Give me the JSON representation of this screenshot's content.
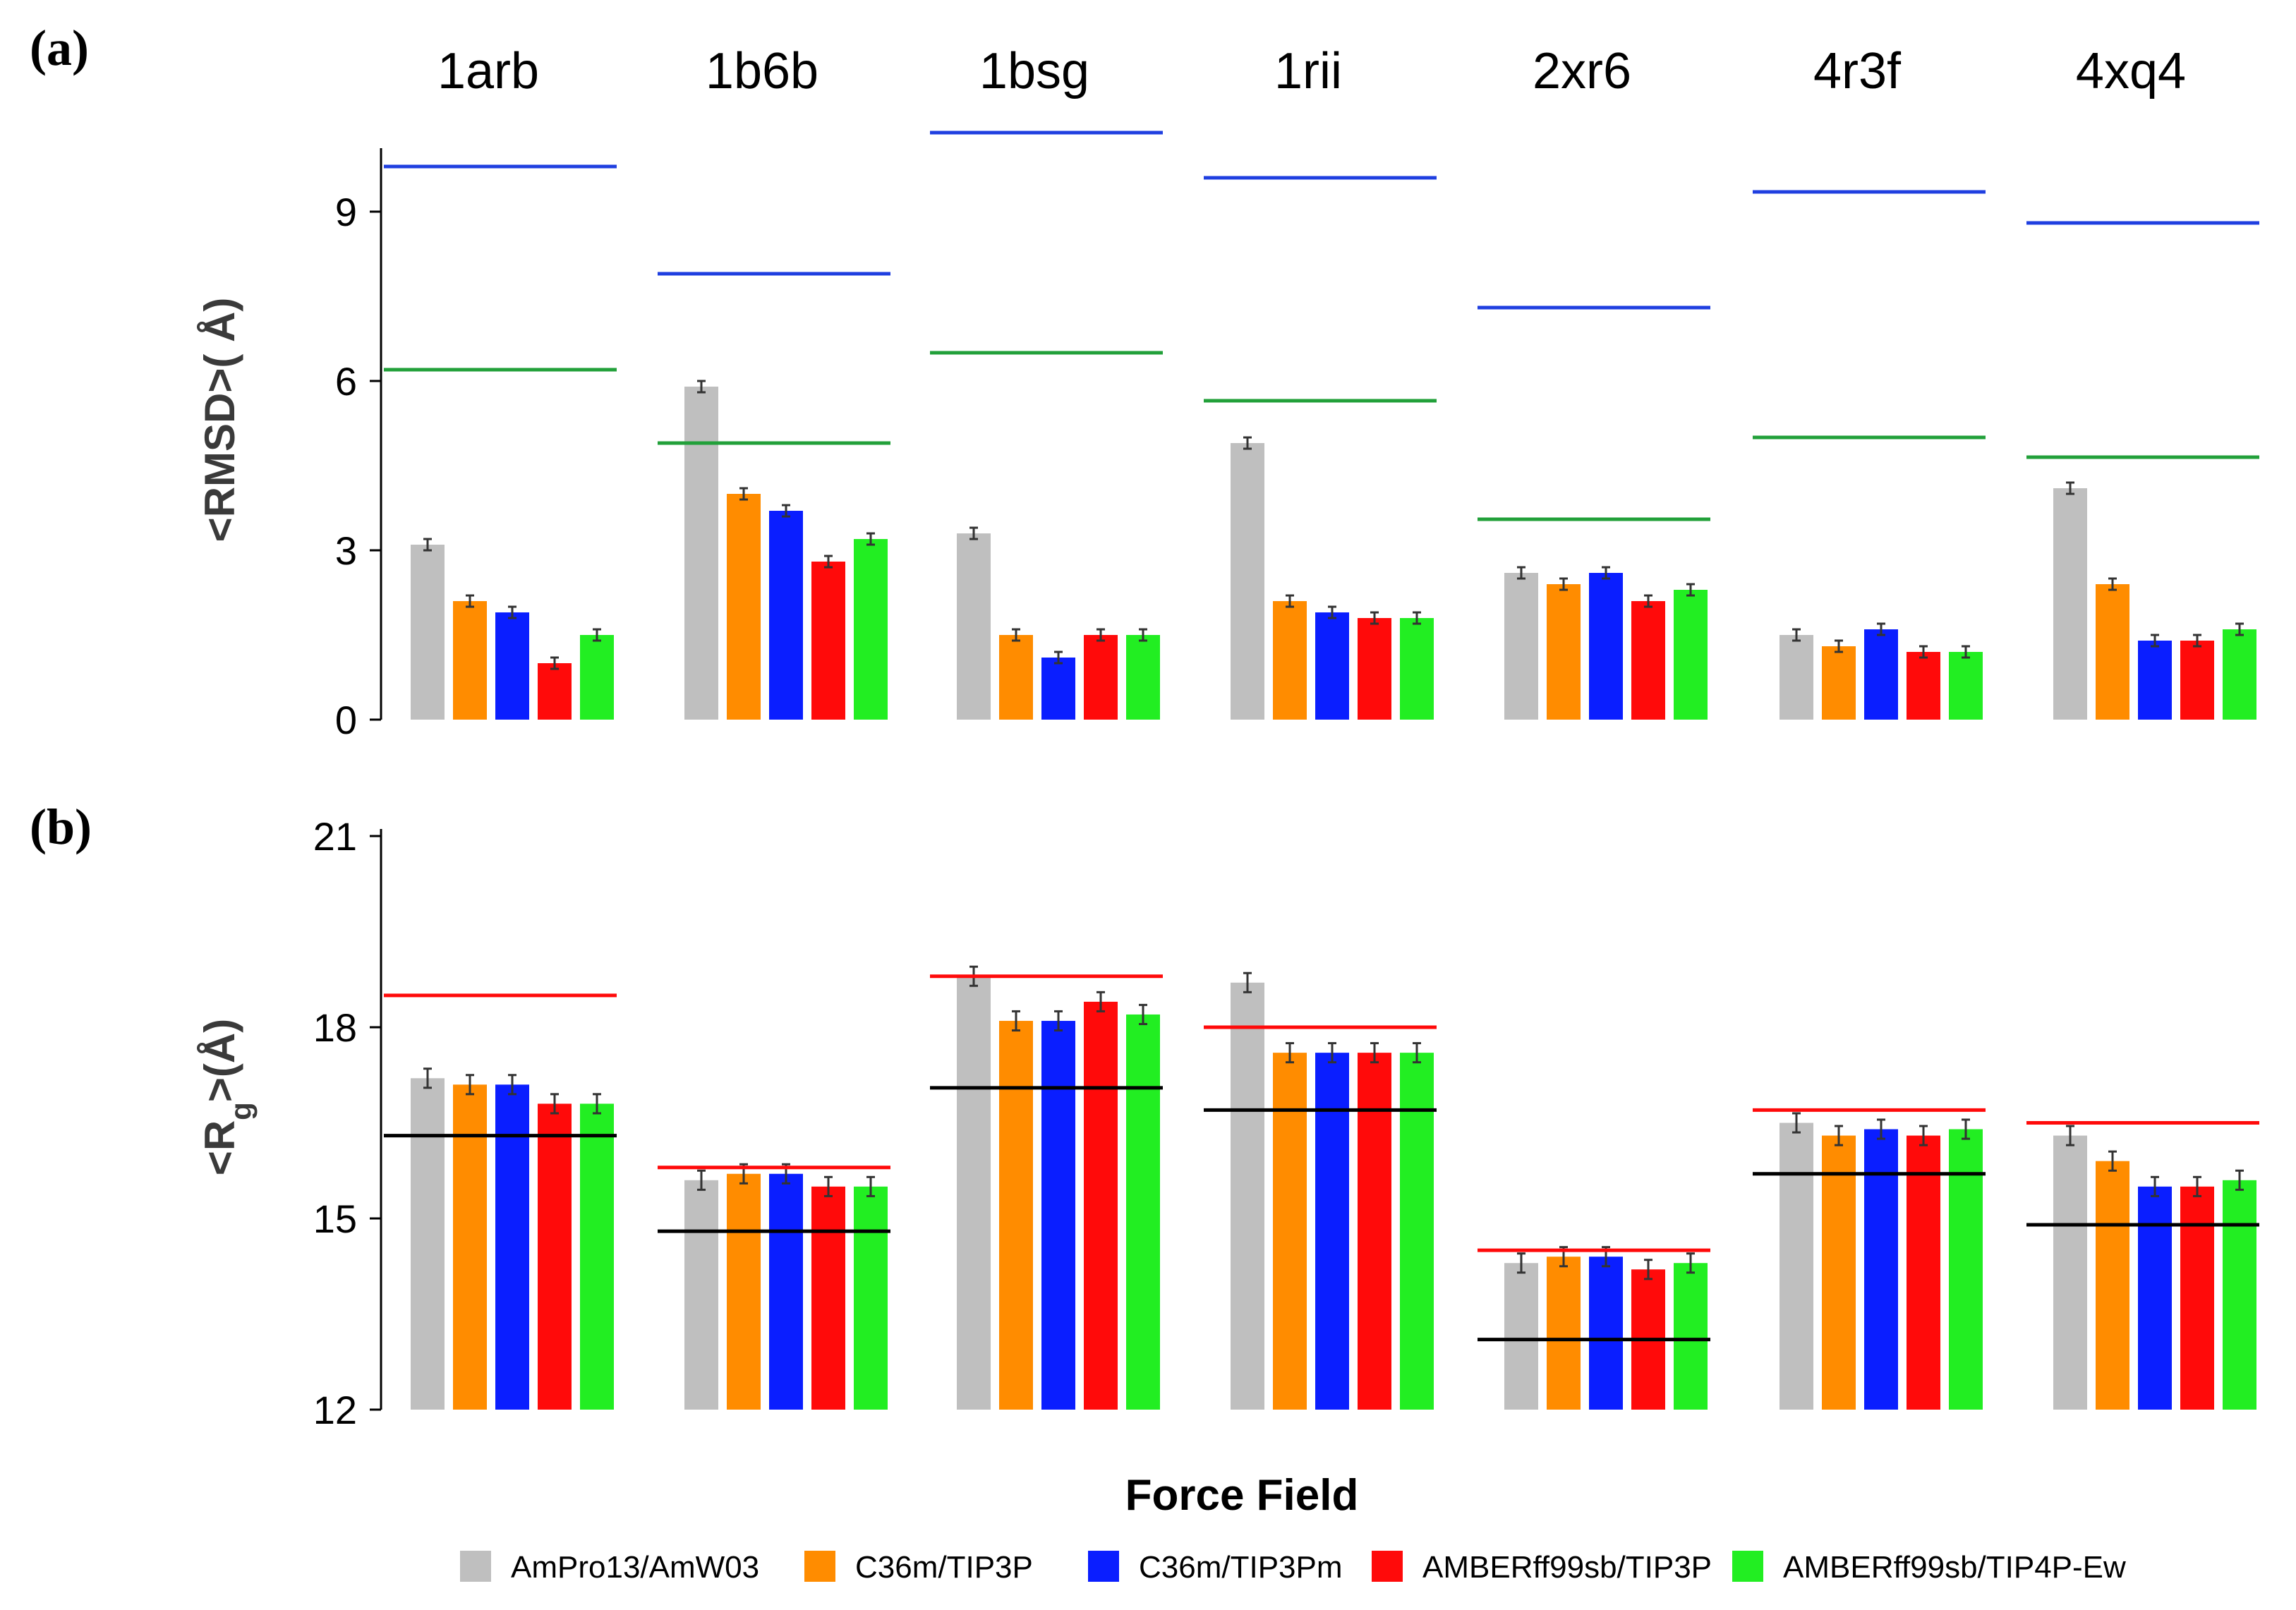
{
  "chart_data": [
    {
      "panel": "(a)",
      "type": "bar",
      "ylabel": "<RMSD>( Å)",
      "ylim": [
        0,
        10
      ],
      "yticks": [
        "0",
        "3",
        "6",
        "9"
      ],
      "categories": [
        "1arb",
        "1b6b",
        "1bsg",
        "1rii",
        "2xr6",
        "4r3f",
        "4xq4"
      ],
      "series": [
        {
          "name": "AmPro13/AmW03",
          "color": "#bfbfbf",
          "values": [
            3.1,
            5.9,
            3.3,
            4.9,
            2.6,
            1.5,
            4.1
          ],
          "errors": [
            0.1,
            0.1,
            0.1,
            0.1,
            0.1,
            0.1,
            0.1
          ]
        },
        {
          "name": "C36m/TIP3P",
          "color": "#ff8c00",
          "values": [
            2.1,
            4.0,
            1.5,
            2.1,
            2.4,
            1.3,
            2.4
          ],
          "errors": [
            0.1,
            0.1,
            0.1,
            0.1,
            0.1,
            0.1,
            0.1
          ]
        },
        {
          "name": "C36m/TIP3Pm",
          "color": "#0a1eff",
          "values": [
            1.9,
            3.7,
            1.1,
            1.9,
            2.6,
            1.6,
            1.4
          ],
          "errors": [
            0.1,
            0.1,
            0.1,
            0.1,
            0.1,
            0.1,
            0.1
          ]
        },
        {
          "name": "AMBERff99sb/TIP3P",
          "color": "#ff0a0a",
          "values": [
            1.0,
            2.8,
            1.5,
            1.8,
            2.1,
            1.2,
            1.4
          ],
          "errors": [
            0.1,
            0.1,
            0.1,
            0.1,
            0.1,
            0.1,
            0.1
          ]
        },
        {
          "name": "AMBERff99sb/TIP4P-Ew",
          "color": "#22ee22",
          "values": [
            1.5,
            3.2,
            1.5,
            1.8,
            2.3,
            1.2,
            1.6
          ],
          "errors": [
            0.1,
            0.1,
            0.1,
            0.1,
            0.1,
            0.1,
            0.1
          ]
        }
      ],
      "reference_lines": [
        {
          "color": "#1f3fe0",
          "values": [
            9.8,
            7.9,
            10.4,
            9.6,
            7.3,
            9.35,
            8.8
          ]
        },
        {
          "color": "#22a03a",
          "values": [
            6.2,
            4.9,
            6.5,
            5.65,
            3.55,
            5.0,
            4.65
          ]
        }
      ]
    },
    {
      "panel": "(b)",
      "type": "bar",
      "ylabel": "<R",
      "ylabel_sub": "g",
      "ylabel_suffix": ">(Å)",
      "ylim": [
        12,
        21
      ],
      "yticks": [
        "12",
        "15",
        "18",
        "21"
      ],
      "categories": [
        "1arb",
        "1b6b",
        "1bsg",
        "1rii",
        "2xr6",
        "4r3f",
        "4xq4"
      ],
      "series": [
        {
          "name": "AmPro13/AmW03",
          "color": "#bfbfbf",
          "values": [
            17.2,
            15.6,
            18.8,
            18.7,
            14.3,
            16.5,
            16.3
          ],
          "errors": [
            0.15,
            0.15,
            0.15,
            0.15,
            0.15,
            0.15,
            0.15
          ]
        },
        {
          "name": "C36m/TIP3P",
          "color": "#ff8c00",
          "values": [
            17.1,
            15.7,
            18.1,
            17.6,
            14.4,
            16.3,
            15.9
          ],
          "errors": [
            0.15,
            0.15,
            0.15,
            0.15,
            0.15,
            0.15,
            0.15
          ]
        },
        {
          "name": "C36m/TIP3Pm",
          "color": "#0a1eff",
          "values": [
            17.1,
            15.7,
            18.1,
            17.6,
            14.4,
            16.4,
            15.5
          ],
          "errors": [
            0.15,
            0.15,
            0.15,
            0.15,
            0.15,
            0.15,
            0.15
          ]
        },
        {
          "name": "AMBERff99sb/TIP3P",
          "color": "#ff0a0a",
          "values": [
            16.8,
            15.5,
            18.4,
            17.6,
            14.2,
            16.3,
            15.5
          ],
          "errors": [
            0.15,
            0.15,
            0.15,
            0.15,
            0.15,
            0.15,
            0.15
          ]
        },
        {
          "name": "AMBERff99sb/TIP4P-Ew",
          "color": "#22ee22",
          "values": [
            16.8,
            15.5,
            18.2,
            17.6,
            14.3,
            16.4,
            15.6
          ],
          "errors": [
            0.15,
            0.15,
            0.15,
            0.15,
            0.15,
            0.15,
            0.15
          ]
        }
      ],
      "reference_lines": [
        {
          "color": "#ff0a0a",
          "values": [
            18.5,
            15.8,
            18.8,
            18.0,
            14.5,
            16.7,
            16.5
          ]
        },
        {
          "color": "#000000",
          "values": [
            16.3,
            14.8,
            17.05,
            16.7,
            13.1,
            15.7,
            14.9
          ]
        }
      ]
    }
  ],
  "xlabel": "Force Field",
  "legend": [
    {
      "name": "AmPro13/AmW03",
      "color": "#bfbfbf"
    },
    {
      "name": "C36m/TIP3P",
      "color": "#ff8c00"
    },
    {
      "name": "C36m/TIP3Pm",
      "color": "#0a1eff"
    },
    {
      "name": "AMBERff99sb/TIP3P",
      "color": "#ff0a0a"
    },
    {
      "name": "AMBERff99sb/TIP4P-Ew",
      "color": "#22ee22"
    }
  ]
}
